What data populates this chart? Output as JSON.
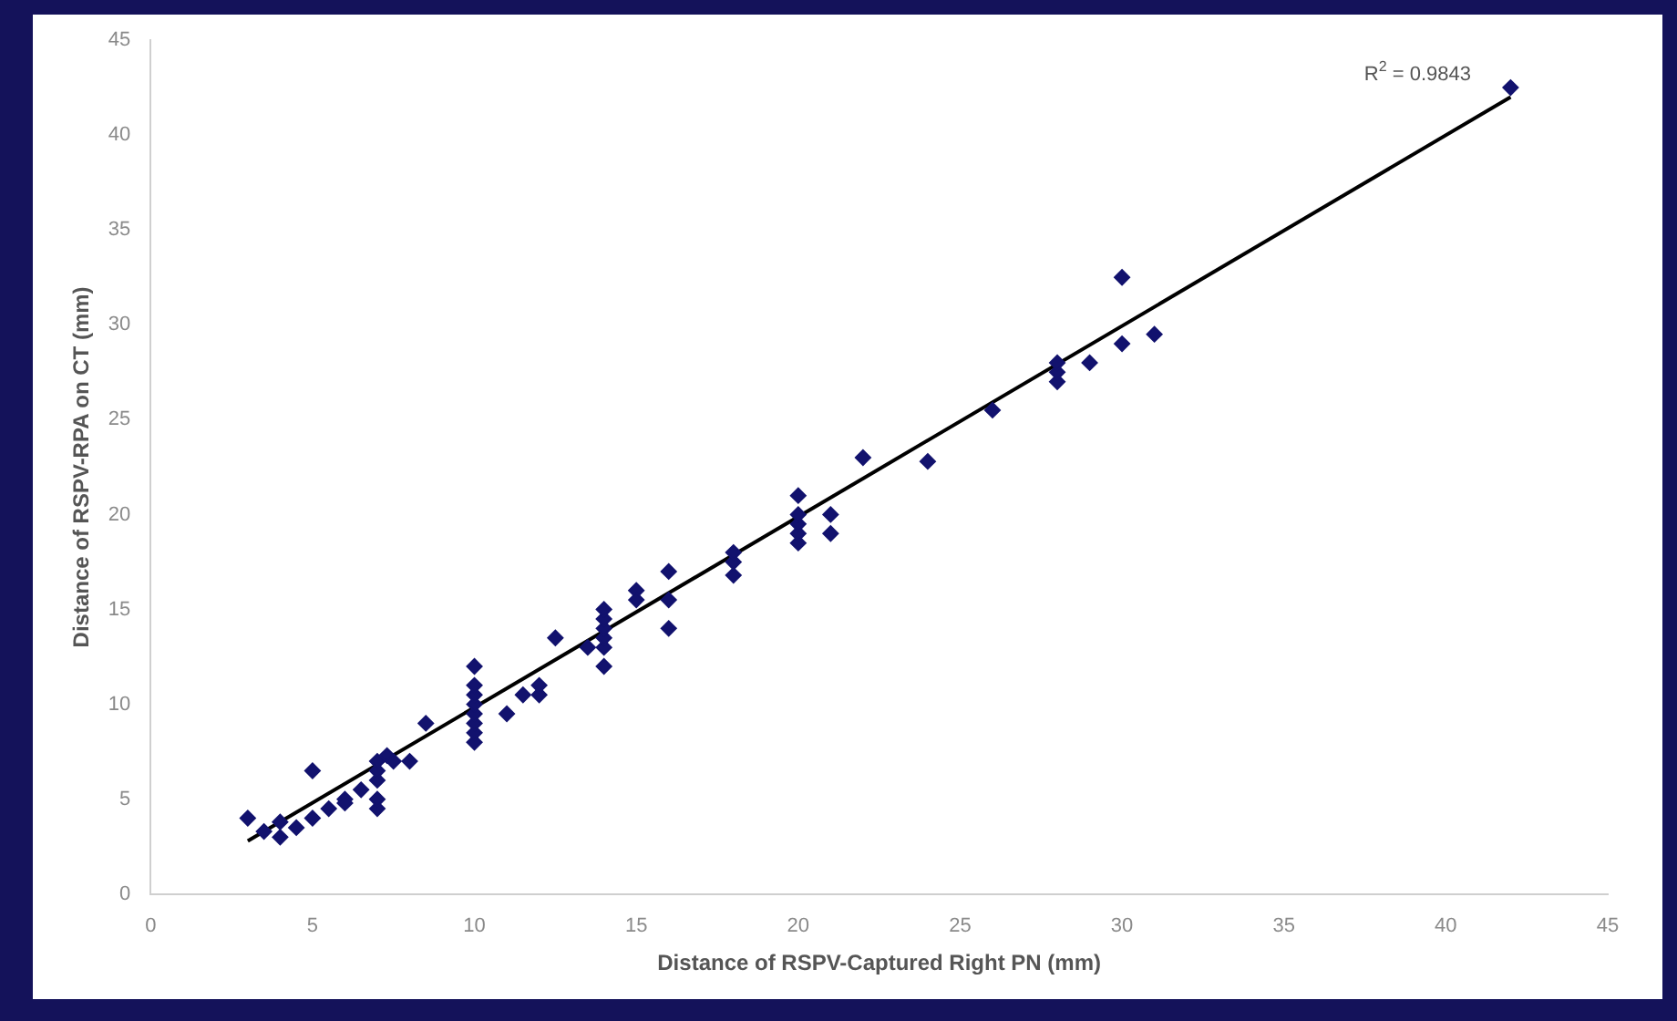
{
  "chart_data": {
    "type": "scatter",
    "xlabel": "Distance of RSPV-Captured Right PN (mm)",
    "ylabel": "Distance of RSPV-RPA on CT (mm)",
    "annotations": [
      "R$^{2}$ = 0.9843"
    ],
    "xlim": [
      0,
      45
    ],
    "xticks": [
      0,
      5,
      10,
      15,
      20,
      25,
      30,
      35,
      40,
      45
    ],
    "ylim": [
      0,
      45
    ],
    "yticks": [
      0,
      5,
      10,
      15,
      20,
      25,
      30,
      35,
      40,
      45
    ],
    "grid": false,
    "legend": false,
    "marker": "diamond",
    "series": [
      {
        "color": "#12126e",
        "x": [
          3,
          3.5,
          4,
          4,
          4.5,
          5,
          5,
          5.5,
          6,
          6,
          6.5,
          7,
          7,
          7,
          7,
          7,
          7.3,
          7.5,
          8,
          8.5,
          10,
          10,
          10,
          10,
          10,
          10,
          10,
          10,
          11,
          11.5,
          12,
          12,
          12.5,
          13.5,
          14,
          14,
          14,
          14,
          14,
          14,
          15,
          15,
          16,
          16,
          16,
          18,
          18,
          18,
          20,
          20,
          20,
          20,
          20,
          21,
          21,
          22,
          24,
          26,
          28,
          28,
          28,
          29,
          30,
          30,
          31,
          42
        ],
        "values": [
          4,
          3.3,
          3,
          3.8,
          3.5,
          4,
          6.5,
          4.5,
          5,
          4.8,
          5.5,
          4.5,
          5,
          6,
          6.5,
          7,
          7.3,
          7,
          7,
          9,
          8,
          8.5,
          9,
          9.5,
          10,
          10.5,
          11,
          12,
          9.5,
          10.5,
          10.5,
          11,
          13.5,
          13,
          12,
          13,
          13.5,
          14,
          14.5,
          15,
          16,
          15.5,
          14,
          15.5,
          17,
          16.8,
          17.5,
          18,
          18.5,
          19,
          19.5,
          20,
          21,
          19,
          20,
          23,
          22.8,
          25.5,
          27,
          27.5,
          28,
          28,
          29,
          32.5,
          29.5,
          42.5
        ]
      },
      {
        "type": "line",
        "color": "#000000",
        "marker": "none",
        "line_style": "solid",
        "x": [
          3,
          42
        ],
        "values": [
          2.8,
          42
        ]
      }
    ]
  }
}
